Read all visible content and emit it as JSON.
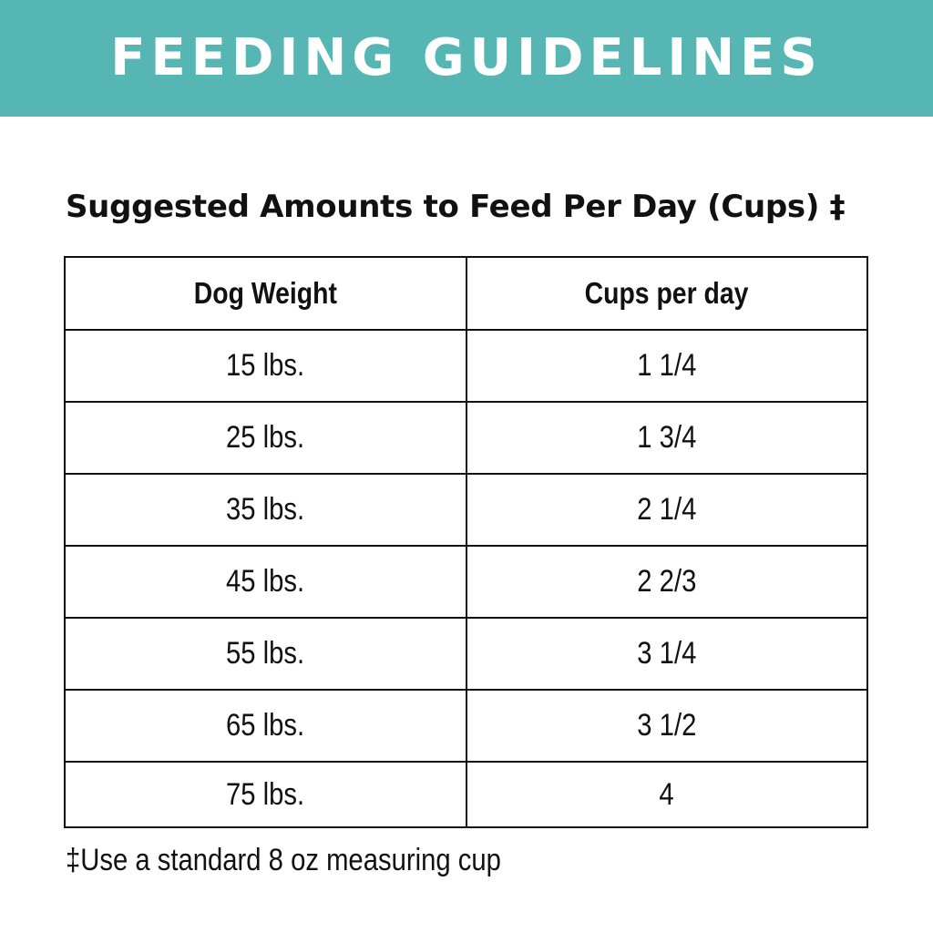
{
  "banner": {
    "title": "FEEDING GUIDELINES",
    "background_color": "#56b6b3",
    "text_color": "#ffffff"
  },
  "subtitle": "Suggested Amounts to Feed Per Day (Cups) ‡",
  "table": {
    "headers": [
      "Dog Weight",
      "Cups per day"
    ],
    "rows": [
      [
        "15 lbs.",
        "1 1/4"
      ],
      [
        "25 lbs.",
        "1 3/4"
      ],
      [
        "35 lbs.",
        "2 1/4"
      ],
      [
        "45 lbs.",
        "2 2/3"
      ],
      [
        "55 lbs.",
        "3 1/4"
      ],
      [
        "65 lbs.",
        "3 1/2"
      ],
      [
        "75 lbs.",
        "4"
      ]
    ]
  },
  "footnote": "‡Use a standard 8 oz measuring cup"
}
